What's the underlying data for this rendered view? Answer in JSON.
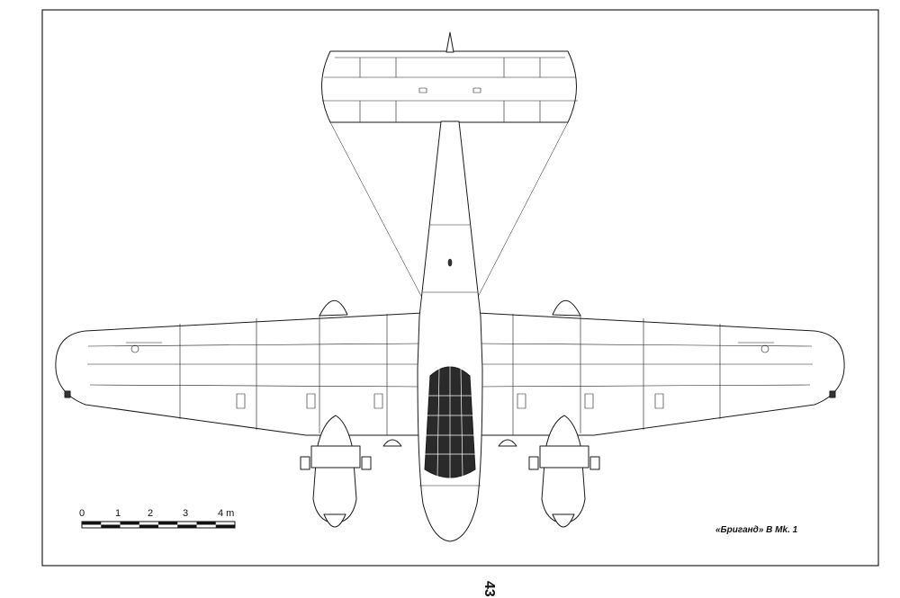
{
  "diagram": {
    "subject": "aircraft-plan-view",
    "caption": "«Бриганд» B Mk. 1",
    "page_number": "43",
    "scale_bar": {
      "labels": [
        "0",
        "1",
        "2",
        "3",
        "4 m"
      ],
      "unit": "m",
      "max_value": 4
    },
    "colors": {
      "line": "#1a1a1a",
      "fill": "#ffffff",
      "cockpit": "#2a2a2a",
      "frame": "#222222"
    }
  }
}
